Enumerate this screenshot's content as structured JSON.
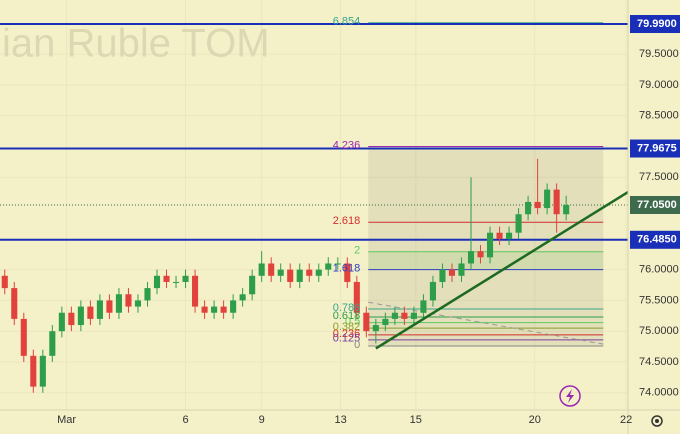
{
  "chart_data": {
    "type": "candlestick",
    "title": "ian Ruble TOM",
    "ylim": [
      73.72,
      80.38
    ],
    "xlim": [
      0,
      66
    ],
    "yticks": [
      {
        "value": 74,
        "label": "74.0000"
      },
      {
        "value": 74.5,
        "label": "74.5000"
      },
      {
        "value": 75,
        "label": "75.0000"
      },
      {
        "value": 75.5,
        "label": "75.5000"
      },
      {
        "value": 76,
        "label": "76.0000"
      },
      {
        "value": 77.5,
        "label": "77.5000"
      },
      {
        "value": 78.5,
        "label": "78.5000"
      },
      {
        "value": 79,
        "label": "79.0000"
      },
      {
        "value": 79.5,
        "label": "79.5000"
      }
    ],
    "xticks": [
      {
        "value": 7,
        "label": "Mar"
      },
      {
        "value": 19.5,
        "label": "6"
      },
      {
        "value": 27.5,
        "label": "9"
      },
      {
        "value": 35.8,
        "label": "13"
      },
      {
        "value": 43.7,
        "label": "15"
      },
      {
        "value": 56.2,
        "label": "20"
      },
      {
        "value": 65.8,
        "label": "22"
      }
    ],
    "up_color": "#2e9e4a",
    "down_color": "#e2423c",
    "open": [
      75.9,
      75.7,
      75.2,
      74.6,
      74.1,
      74.6,
      75.0,
      75.3,
      75.1,
      75.4,
      75.2,
      75.5,
      75.3,
      75.6,
      75.4,
      75.5,
      75.7,
      75.9,
      75.8,
      75.8,
      75.9,
      75.4,
      75.3,
      75.4,
      75.3,
      75.5,
      75.6,
      75.9,
      76.1,
      75.9,
      76.0,
      75.8,
      76.0,
      75.9,
      76.0,
      76.1,
      76.1,
      75.8,
      75.3,
      75.0,
      75.1,
      75.2,
      75.3,
      75.2,
      75.3,
      75.5,
      75.8,
      76.0,
      75.9,
      76.1,
      76.3,
      76.2,
      76.6,
      76.5,
      76.6,
      76.9,
      77.1,
      77.0,
      77.3,
      76.9
    ],
    "high": [
      76.0,
      75.8,
      75.3,
      74.7,
      74.7,
      75.1,
      75.4,
      75.4,
      75.5,
      75.5,
      75.6,
      75.6,
      75.7,
      75.7,
      75.6,
      75.8,
      76.0,
      76.0,
      75.9,
      76.0,
      76.0,
      75.5,
      75.5,
      75.5,
      75.6,
      75.7,
      76.0,
      76.3,
      76.2,
      76.1,
      76.1,
      76.1,
      76.1,
      76.1,
      76.2,
      76.2,
      76.2,
      75.9,
      75.4,
      75.2,
      75.3,
      75.4,
      75.4,
      75.4,
      75.6,
      75.9,
      76.1,
      76.1,
      76.2,
      77.5,
      76.4,
      76.7,
      76.7,
      76.7,
      77.0,
      77.2,
      77.8,
      77.4,
      77.4,
      77.2
    ],
    "low": [
      75.6,
      75.1,
      74.5,
      74.0,
      74.0,
      74.5,
      74.9,
      75.0,
      75.0,
      75.1,
      75.1,
      75.2,
      75.2,
      75.3,
      75.3,
      75.4,
      75.6,
      75.7,
      75.7,
      75.7,
      75.3,
      75.2,
      75.2,
      75.2,
      75.2,
      75.4,
      75.5,
      75.8,
      75.8,
      75.8,
      75.7,
      75.7,
      75.8,
      75.8,
      75.9,
      76.0,
      75.7,
      75.2,
      74.9,
      74.8,
      75.0,
      75.1,
      75.1,
      75.1,
      75.2,
      75.4,
      75.7,
      75.8,
      75.8,
      76.0,
      76.1,
      76.1,
      76.4,
      76.4,
      76.5,
      76.8,
      76.9,
      76.9,
      76.6,
      76.8
    ],
    "close": [
      75.7,
      75.2,
      74.6,
      74.1,
      74.6,
      75.0,
      75.3,
      75.1,
      75.4,
      75.2,
      75.5,
      75.3,
      75.6,
      75.4,
      75.5,
      75.7,
      75.9,
      75.8,
      75.8,
      75.9,
      75.4,
      75.3,
      75.4,
      75.3,
      75.5,
      75.6,
      75.9,
      76.1,
      75.9,
      76.0,
      75.8,
      76.0,
      75.9,
      76.0,
      76.1,
      76.1,
      75.8,
      75.3,
      75.0,
      75.1,
      75.2,
      75.3,
      75.2,
      75.3,
      75.5,
      75.8,
      76.0,
      75.9,
      76.1,
      76.3,
      76.2,
      76.6,
      76.5,
      76.6,
      76.9,
      77.1,
      77.0,
      77.3,
      76.9,
      77.05
    ],
    "price_lines": [
      {
        "value": 79.99,
        "label": "79.9900",
        "color": "#1a2fb8"
      },
      {
        "value": 77.9675,
        "label": "77.9675",
        "color": "#1a2fb8"
      },
      {
        "value": 76.485,
        "label": "76.4850",
        "color": "#1a2fb8"
      }
    ],
    "last_price": {
      "value": 77.05,
      "label": "77.0500",
      "color": "#3e6a4e"
    },
    "fib_box": {
      "x": [
        38.7,
        63.4
      ]
    },
    "fib_levels": [
      {
        "label": "6.854",
        "price": 80.01,
        "color": "#3aa58c"
      },
      {
        "label": "4.236",
        "price": 78.0,
        "color": "#9c27b0"
      },
      {
        "label": "2.618",
        "price": 76.77,
        "color": "#d32f2f"
      },
      {
        "label": "2",
        "price": 76.29,
        "color": "#5ec95e"
      },
      {
        "label": "1.618",
        "price": 76.0,
        "color": "#2a3fc0"
      },
      {
        "label": "0.786",
        "price": 75.36,
        "color": "#3aa58c"
      },
      {
        "label": "0.618",
        "price": 75.23,
        "color": "#2e9e4a"
      },
      {
        "label": "0.5",
        "price": 75.14,
        "color": "#5ec95e"
      },
      {
        "label": "0.382",
        "price": 75.05,
        "color": "#8a9e2a"
      },
      {
        "label": "0.236",
        "price": 74.94,
        "color": "#d32f2f"
      },
      {
        "label": "0.125",
        "price": 74.86,
        "color": "#7b3fa0"
      },
      {
        "label": "0",
        "price": 74.76,
        "color": "#888888"
      }
    ],
    "trend_line": {
      "x": [
        39.5,
        66
      ],
      "y": [
        74.72,
        77.26
      ],
      "color": "#1e6a22"
    },
    "dashed_line": {
      "x": [
        38.7,
        63.4
      ],
      "y": [
        75.47,
        74.79
      ],
      "color": "#999999"
    }
  }
}
